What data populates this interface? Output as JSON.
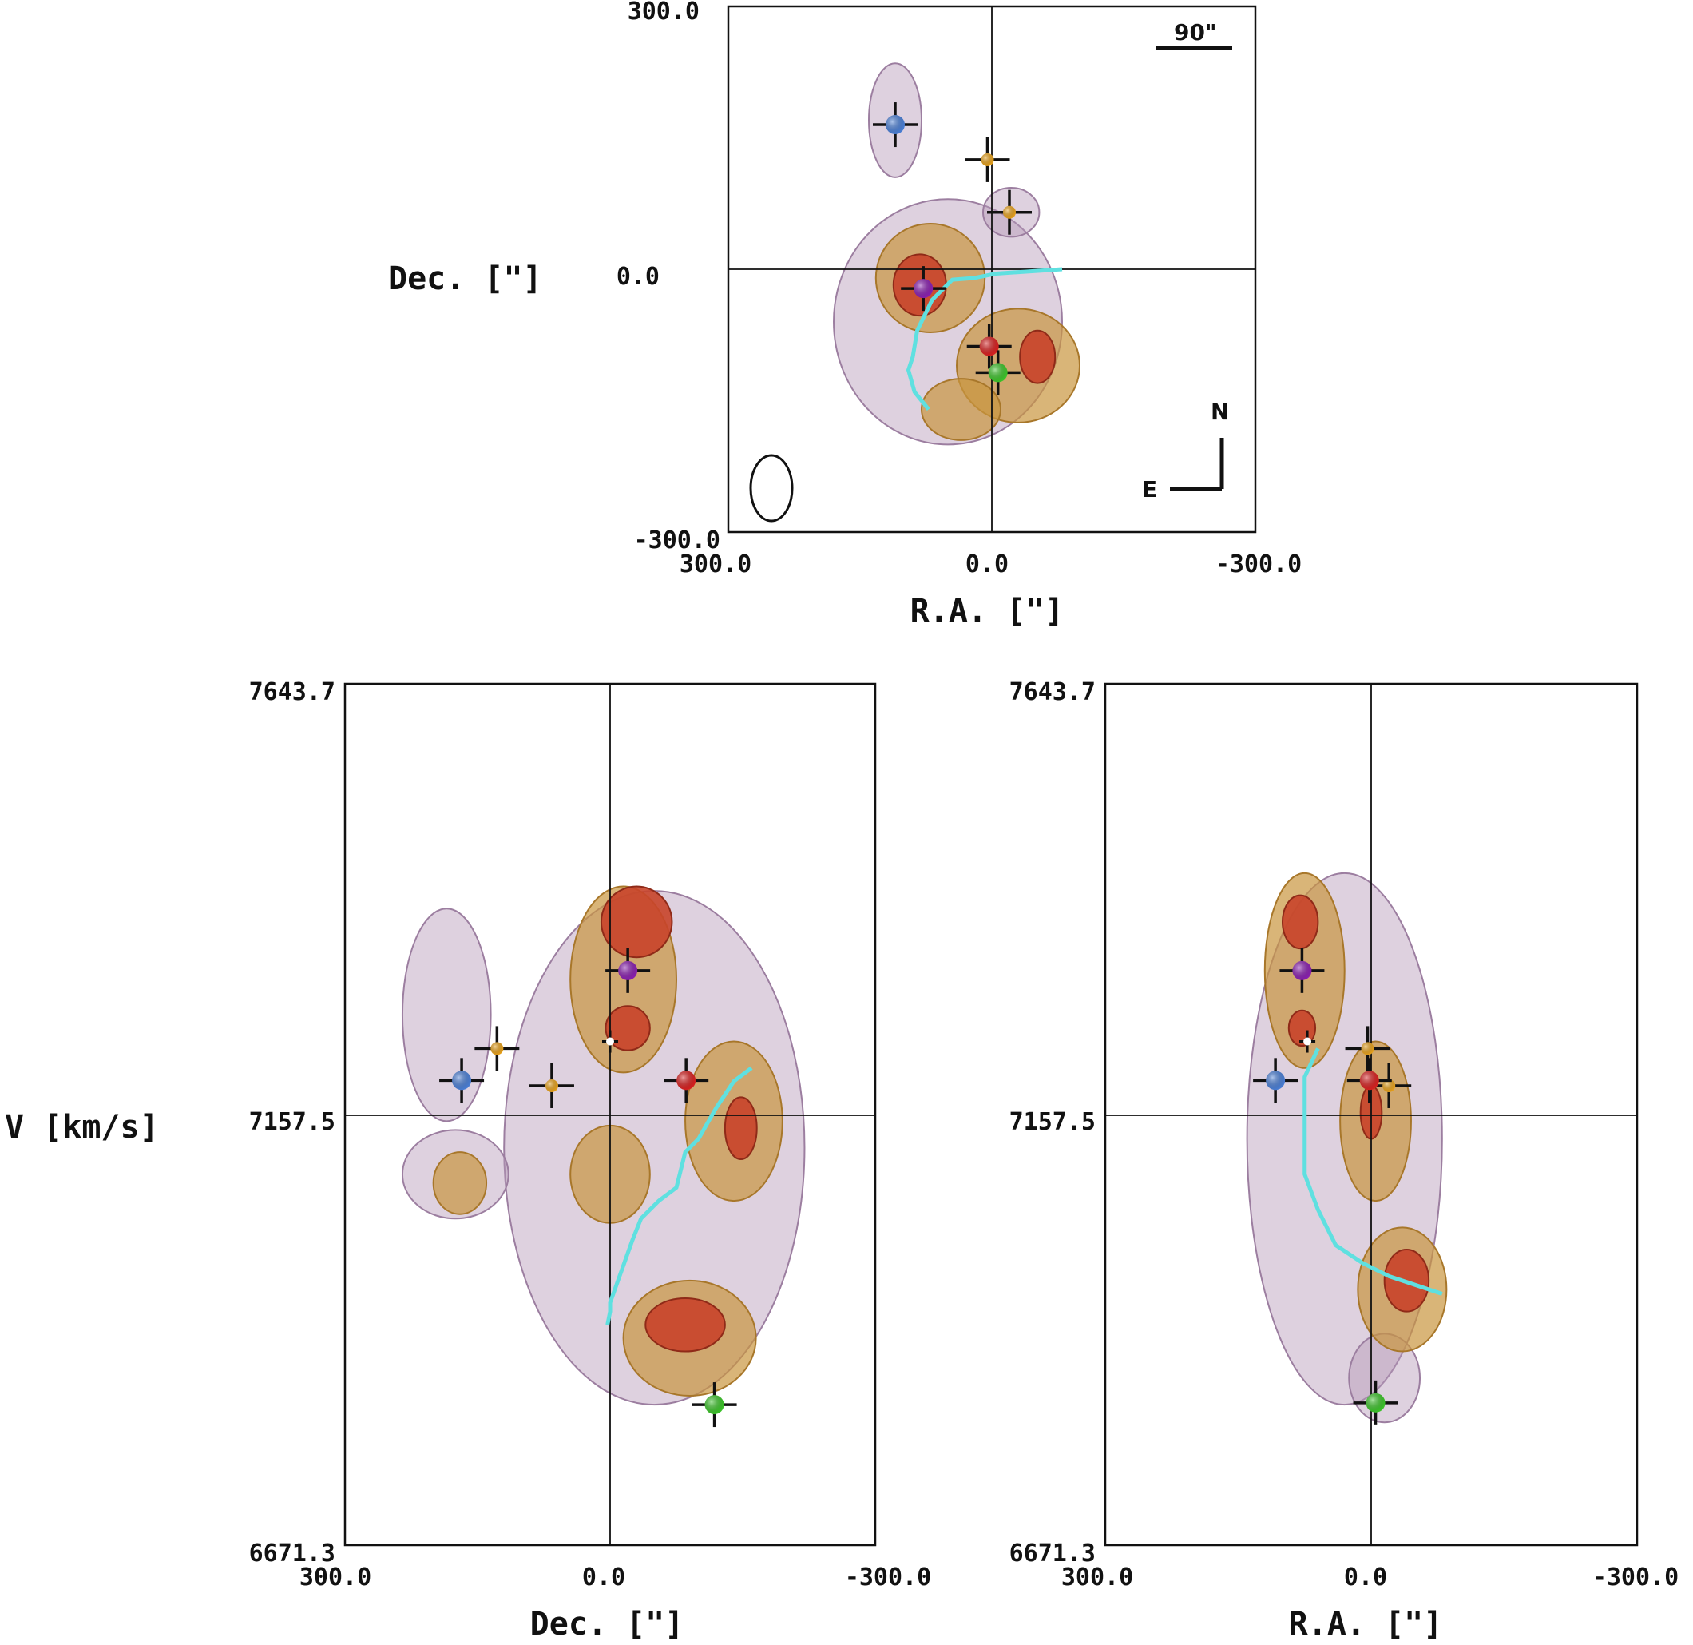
{
  "chart_data": [
    {
      "type": "scatter",
      "panel": "top",
      "xlabel": "R.A. [\"]",
      "ylabel": "Dec. [\"]",
      "xlim": [
        300.0,
        -300.0
      ],
      "ylim": [
        -300.0,
        300.0
      ],
      "x_ticks": [
        "300.0",
        "0.0",
        "-300.0"
      ],
      "y_ticks": [
        "300.0",
        "0.0",
        "-300.0"
      ],
      "annotations": {
        "scale_bar": "90\"",
        "north": "N",
        "east": "E"
      },
      "markers": [
        {
          "color": "#4a7fd6",
          "x": 110,
          "y": 165
        },
        {
          "color": "#e8a21c",
          "x": 5,
          "y": 125
        },
        {
          "color": "#e8a21c",
          "x": -20,
          "y": 65
        },
        {
          "color": "#8a1fb0",
          "x": 78,
          "y": -22
        },
        {
          "color": "#d82020",
          "x": 3,
          "y": -88
        },
        {
          "color": "#3cc42a",
          "x": -7,
          "y": -118
        }
      ],
      "cyan_track": {
        "x": [
          -80,
          -5,
          20,
          45,
          68,
          85,
          90,
          95,
          88,
          72
        ],
        "y": [
          0,
          -5,
          -10,
          -12,
          -35,
          -70,
          -100,
          -115,
          -140,
          -160
        ]
      },
      "blobs": [
        {
          "level": 3,
          "x": 82,
          "y": -18,
          "rx": 30,
          "ry": 35
        },
        {
          "level": 3,
          "x": -52,
          "y": -100,
          "rx": 20,
          "ry": 30
        },
        {
          "level": 2,
          "x": 70,
          "y": -10,
          "rx": 62,
          "ry": 62
        },
        {
          "level": 2,
          "x": -30,
          "y": -110,
          "rx": 70,
          "ry": 65
        },
        {
          "level": 2,
          "x": 35,
          "y": -160,
          "rx": 45,
          "ry": 35
        },
        {
          "level": 1,
          "x": 50,
          "y": -60,
          "rx": 130,
          "ry": 140
        },
        {
          "level": 1,
          "x": 110,
          "y": 170,
          "rx": 30,
          "ry": 65
        },
        {
          "level": 1,
          "x": -22,
          "y": 65,
          "rx": 32,
          "ry": 28
        }
      ]
    },
    {
      "type": "scatter",
      "panel": "bottom-left",
      "xlabel": "Dec. [\"]",
      "ylabel": "V [km/s]",
      "xlim": [
        300.0,
        -300.0
      ],
      "ylim": [
        6671.3,
        7643.7
      ],
      "x_ticks": [
        "300.0",
        "0.0",
        "-300.0"
      ],
      "y_ticks": [
        "7643.7",
        "7157.5",
        "6671.3"
      ],
      "markers": [
        {
          "color": "#4a7fd6",
          "x": 168,
          "y": 7196
        },
        {
          "color": "#e8a21c",
          "x": 128,
          "y": 7232
        },
        {
          "color": "#e8a21c",
          "x": 66,
          "y": 7190
        },
        {
          "color": "#8a1fb0",
          "x": -20,
          "y": 7320
        },
        {
          "color": "#d82020",
          "x": -86,
          "y": 7196
        },
        {
          "color": "#3cc42a",
          "x": -118,
          "y": 6830
        }
      ],
      "white_marker": {
        "x": 0,
        "y": 7240
      },
      "cyan_track": {
        "x": 3,
        "y": 7065,
        "x2": -5,
        "y2": 7135
      },
      "blobs": [
        {
          "level": 3,
          "x": -30,
          "y": 7375,
          "rx": 40,
          "ry": 40
        },
        {
          "level": 3,
          "x": -20,
          "y": 7255,
          "rx": 25,
          "ry": 25
        },
        {
          "level": 3,
          "x": -148,
          "y": 7142,
          "rx": 18,
          "ry": 35
        },
        {
          "level": 3,
          "x": -85,
          "y": 6920,
          "rx": 45,
          "ry": 30
        },
        {
          "level": 2,
          "x": -15,
          "y": 7310,
          "rx": 60,
          "ry": 105
        },
        {
          "level": 2,
          "x": -140,
          "y": 7150,
          "rx": 55,
          "ry": 90
        },
        {
          "level": 2,
          "x": -90,
          "y": 6905,
          "rx": 75,
          "ry": 65
        },
        {
          "level": 2,
          "x": 0,
          "y": 7090,
          "rx": 45,
          "ry": 55
        },
        {
          "level": 2,
          "x": 170,
          "y": 7080,
          "rx": 30,
          "ry": 35
        },
        {
          "level": 1,
          "x": -50,
          "y": 7120,
          "rx": 170,
          "ry": 290
        },
        {
          "level": 1,
          "x": 185,
          "y": 7270,
          "rx": 50,
          "ry": 120
        },
        {
          "level": 1,
          "x": 175,
          "y": 7090,
          "rx": 60,
          "ry": 50
        }
      ]
    },
    {
      "type": "scatter",
      "panel": "bottom-right",
      "xlabel": "R.A. [\"]",
      "ylabel": "",
      "xlim": [
        300.0,
        -300.0
      ],
      "ylim": [
        6671.3,
        7643.7
      ],
      "x_ticks": [
        "300.0",
        "0.0",
        "-300.0"
      ],
      "y_ticks": [
        "7643.7",
        "7157.5",
        "6671.3"
      ],
      "markers": [
        {
          "color": "#4a7fd6",
          "x": 108,
          "y": 7196
        },
        {
          "color": "#e8a21c",
          "x": 4,
          "y": 7232
        },
        {
          "color": "#e8a21c",
          "x": -20,
          "y": 7190
        },
        {
          "color": "#8a1fb0",
          "x": 78,
          "y": 7320
        },
        {
          "color": "#d82020",
          "x": 2,
          "y": 7196
        },
        {
          "color": "#3cc42a",
          "x": -5,
          "y": 6832
        }
      ],
      "white_marker": {
        "x": 72,
        "y": 7240
      },
      "blobs": [
        {
          "level": 3,
          "x": 80,
          "y": 7375,
          "rx": 20,
          "ry": 30
        },
        {
          "level": 3,
          "x": 78,
          "y": 7255,
          "rx": 15,
          "ry": 20
        },
        {
          "level": 3,
          "x": 0,
          "y": 7160,
          "rx": 12,
          "ry": 30
        },
        {
          "level": 3,
          "x": -40,
          "y": 6970,
          "rx": 25,
          "ry": 35
        },
        {
          "level": 2,
          "x": 75,
          "y": 7320,
          "rx": 45,
          "ry": 110
        },
        {
          "level": 2,
          "x": -5,
          "y": 7150,
          "rx": 40,
          "ry": 90
        },
        {
          "level": 2,
          "x": -35,
          "y": 6960,
          "rx": 50,
          "ry": 70
        },
        {
          "level": 1,
          "x": 30,
          "y": 7130,
          "rx": 110,
          "ry": 300
        },
        {
          "level": 1,
          "x": -15,
          "y": 6860,
          "rx": 40,
          "ry": 50
        }
      ]
    }
  ]
}
